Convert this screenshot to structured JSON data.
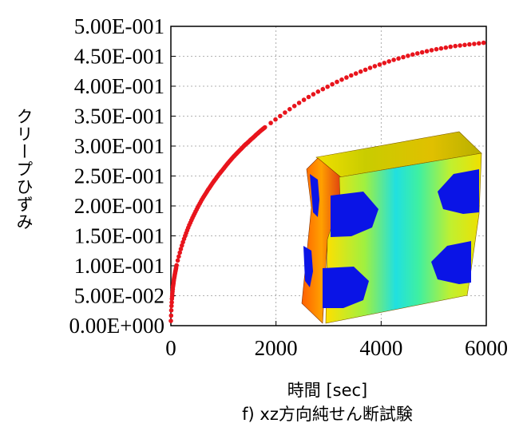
{
  "chart_data": {
    "type": "scatter",
    "xlabel": "時間 [sec]",
    "ylabel": "クリープひずみ",
    "caption": "f) xz方向純せん断試験",
    "xlim": [
      0,
      6000
    ],
    "ylim": [
      0,
      0.5
    ],
    "x_ticks": [
      "0",
      "2000",
      "4000",
      "6000"
    ],
    "y_ticks": [
      "0.00E+000",
      "5.00E-002",
      "1.00E-001",
      "1.50E-001",
      "2.00E-001",
      "2.50E-001",
      "3.00E-001",
      "3.50E-001",
      "4.00E-001",
      "4.50E-001",
      "5.00E-001"
    ],
    "grid": true,
    "marker_color": "#e8141c",
    "inset": "3D deformed specimen contour (colored mesh image)",
    "series": [
      {
        "x": [
          0,
          10,
          20,
          40,
          60,
          80,
          100,
          130,
          160,
          200,
          250,
          300,
          350,
          400,
          450,
          500,
          600,
          700,
          800,
          900,
          1000,
          1100,
          1200,
          1300,
          1400,
          1500,
          1600,
          1700,
          1800,
          2000,
          2200,
          2400,
          2600,
          2800,
          3000,
          3200,
          3400,
          3600,
          3800,
          4000,
          4200,
          4400,
          4600,
          4800,
          5000,
          5200,
          5400,
          5600,
          5800,
          6000
        ],
        "y": [
          0.008,
          0.03,
          0.045,
          0.065,
          0.078,
          0.088,
          0.097,
          0.109,
          0.119,
          0.131,
          0.145,
          0.157,
          0.168,
          0.178,
          0.187,
          0.196,
          0.212,
          0.226,
          0.239,
          0.251,
          0.262,
          0.273,
          0.283,
          0.292,
          0.301,
          0.309,
          0.317,
          0.325,
          0.332,
          0.345,
          0.358,
          0.37,
          0.381,
          0.391,
          0.4,
          0.409,
          0.417,
          0.424,
          0.431,
          0.437,
          0.443,
          0.448,
          0.453,
          0.457,
          0.461,
          0.464,
          0.467,
          0.469,
          0.471,
          0.473
        ]
      }
    ]
  }
}
